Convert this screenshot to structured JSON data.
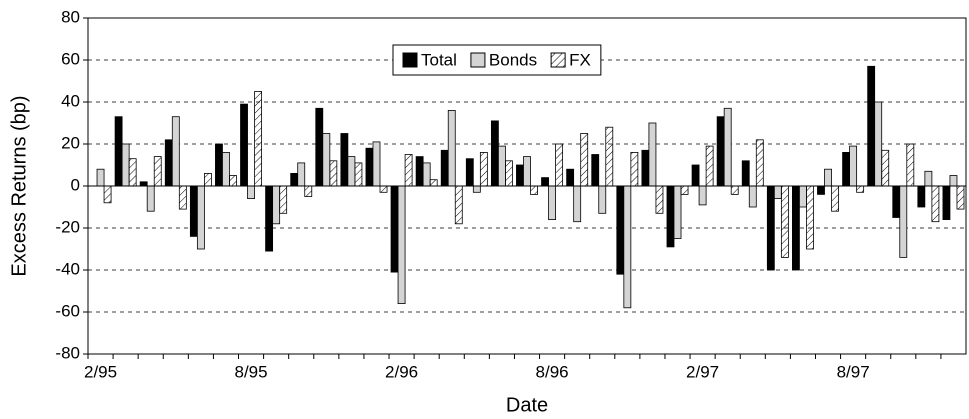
{
  "chart_data": {
    "type": "bar",
    "x_label": "Date",
    "y_label": "Excess Returns (bp)",
    "categories": [
      "2/95",
      null,
      null,
      null,
      null,
      null,
      "8/95",
      null,
      null,
      null,
      null,
      null,
      "2/96",
      null,
      null,
      null,
      null,
      null,
      "8/96",
      null,
      null,
      null,
      null,
      null,
      "2/97",
      null,
      null,
      null,
      null,
      null,
      "8/97",
      null,
      null,
      null,
      null
    ],
    "series": [
      {
        "name": "Total",
        "color": "#000000",
        "hatch": false,
        "values": [
          0,
          33,
          2,
          22,
          -24,
          20,
          39,
          -31,
          6,
          37,
          25,
          18,
          -41,
          14,
          17,
          13,
          31,
          10,
          4,
          8,
          15,
          -42,
          17,
          -29,
          10,
          33,
          12,
          -40,
          -40,
          -4,
          16,
          57,
          -15,
          -10,
          -16
        ]
      },
      {
        "name": "Bonds",
        "color": "#d4d4d4",
        "hatch": false,
        "values": [
          8,
          20,
          -12,
          33,
          -30,
          16,
          -6,
          -18,
          11,
          25,
          14,
          21,
          -56,
          11,
          36,
          -3,
          19,
          14,
          -16,
          -17,
          -13,
          -58,
          30,
          -25,
          -9,
          37,
          -10,
          -6,
          -10,
          8,
          19,
          40,
          -34,
          7,
          5
        ]
      },
      {
        "name": "FX",
        "color": "#ffffff",
        "hatch": true,
        "values": [
          -8,
          13,
          14,
          -11,
          6,
          5,
          45,
          -13,
          -5,
          12,
          11,
          -3,
          15,
          3,
          -18,
          16,
          12,
          -4,
          20,
          25,
          28,
          16,
          -13,
          -4,
          19,
          -4,
          22,
          -34,
          -30,
          -12,
          -3,
          17,
          20,
          -17,
          -11
        ]
      }
    ],
    "ylim": [
      -80,
      80
    ],
    "yticks": [
      -80,
      -60,
      -40,
      -20,
      0,
      20,
      40,
      60,
      80
    ],
    "grid": true,
    "legend": "top"
  }
}
